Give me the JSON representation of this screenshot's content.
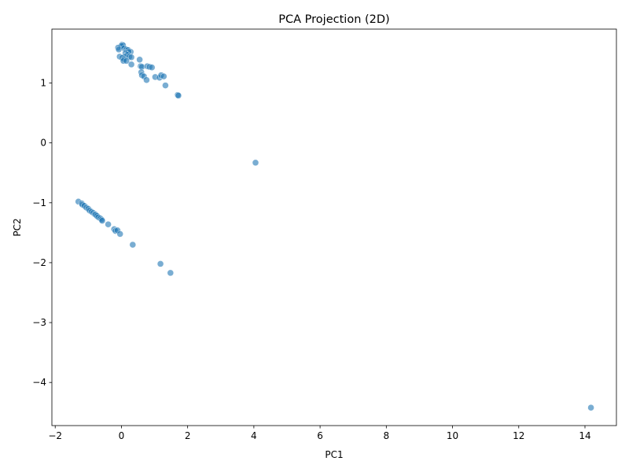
{
  "chart_data": {
    "type": "scatter",
    "title": "PCA Projection (2D)",
    "xlabel": "PC1",
    "ylabel": "PC2",
    "xlim": [
      -2.1,
      14.95
    ],
    "ylim": [
      -4.72,
      1.9
    ],
    "xticks": [
      -2,
      0,
      2,
      4,
      6,
      8,
      10,
      12,
      14
    ],
    "yticks": [
      1,
      0,
      -1,
      -2,
      -3,
      -4
    ],
    "xtick_labels": [
      "−2",
      "0",
      "2",
      "4",
      "6",
      "8",
      "10",
      "12",
      "14"
    ],
    "ytick_labels": [
      "1",
      "0",
      "−1",
      "−2",
      "−3",
      "−4"
    ],
    "grid": false,
    "marker_color": "#1f77b4",
    "marker_alpha": 0.6,
    "points": [
      {
        "x": 0.02,
        "y": 1.64
      },
      {
        "x": 0.05,
        "y": 1.63
      },
      {
        "x": 0.0,
        "y": 1.62
      },
      {
        "x": -0.1,
        "y": 1.59
      },
      {
        "x": -0.08,
        "y": 1.56
      },
      {
        "x": 0.08,
        "y": 1.58
      },
      {
        "x": 0.15,
        "y": 1.56
      },
      {
        "x": 0.2,
        "y": 1.55
      },
      {
        "x": 0.28,
        "y": 1.52
      },
      {
        "x": 0.22,
        "y": 1.52
      },
      {
        "x": 0.12,
        "y": 1.5
      },
      {
        "x": 0.18,
        "y": 1.47
      },
      {
        "x": 0.1,
        "y": 1.44
      },
      {
        "x": 0.24,
        "y": 1.44
      },
      {
        "x": 0.3,
        "y": 1.43
      },
      {
        "x": -0.05,
        "y": 1.44
      },
      {
        "x": 0.02,
        "y": 1.42
      },
      {
        "x": 0.08,
        "y": 1.4
      },
      {
        "x": 0.06,
        "y": 1.37
      },
      {
        "x": 0.15,
        "y": 1.37
      },
      {
        "x": 0.3,
        "y": 1.31
      },
      {
        "x": 0.55,
        "y": 1.39
      },
      {
        "x": 0.58,
        "y": 1.28
      },
      {
        "x": 0.62,
        "y": 1.27
      },
      {
        "x": 0.78,
        "y": 1.28
      },
      {
        "x": 0.85,
        "y": 1.27
      },
      {
        "x": 0.92,
        "y": 1.26
      },
      {
        "x": 0.6,
        "y": 1.18
      },
      {
        "x": 0.62,
        "y": 1.13
      },
      {
        "x": 0.68,
        "y": 1.11
      },
      {
        "x": 0.76,
        "y": 1.05
      },
      {
        "x": 1.02,
        "y": 1.1
      },
      {
        "x": 1.15,
        "y": 1.09
      },
      {
        "x": 1.2,
        "y": 1.13
      },
      {
        "x": 1.28,
        "y": 1.11
      },
      {
        "x": 1.33,
        "y": 0.96
      },
      {
        "x": 1.7,
        "y": 0.8
      },
      {
        "x": 1.72,
        "y": 0.79
      },
      {
        "x": 4.05,
        "y": -0.33
      },
      {
        "x": -1.3,
        "y": -0.98
      },
      {
        "x": -1.2,
        "y": -1.01
      },
      {
        "x": -1.18,
        "y": -1.03
      },
      {
        "x": -1.12,
        "y": -1.05
      },
      {
        "x": -1.06,
        "y": -1.08
      },
      {
        "x": -1.0,
        "y": -1.1
      },
      {
        "x": -0.96,
        "y": -1.13
      },
      {
        "x": -0.9,
        "y": -1.15
      },
      {
        "x": -0.85,
        "y": -1.17
      },
      {
        "x": -0.8,
        "y": -1.19
      },
      {
        "x": -0.78,
        "y": -1.2
      },
      {
        "x": -0.74,
        "y": -1.22
      },
      {
        "x": -0.7,
        "y": -1.24
      },
      {
        "x": -0.64,
        "y": -1.26
      },
      {
        "x": -0.6,
        "y": -1.28
      },
      {
        "x": -0.58,
        "y": -1.3
      },
      {
        "x": -0.4,
        "y": -1.36
      },
      {
        "x": -0.22,
        "y": -1.44
      },
      {
        "x": -0.18,
        "y": -1.47
      },
      {
        "x": -0.12,
        "y": -1.46
      },
      {
        "x": -0.04,
        "y": -1.52
      },
      {
        "x": 0.34,
        "y": -1.7
      },
      {
        "x": 1.18,
        "y": -2.02
      },
      {
        "x": 1.48,
        "y": -2.17
      },
      {
        "x": 14.18,
        "y": -4.42
      }
    ]
  }
}
